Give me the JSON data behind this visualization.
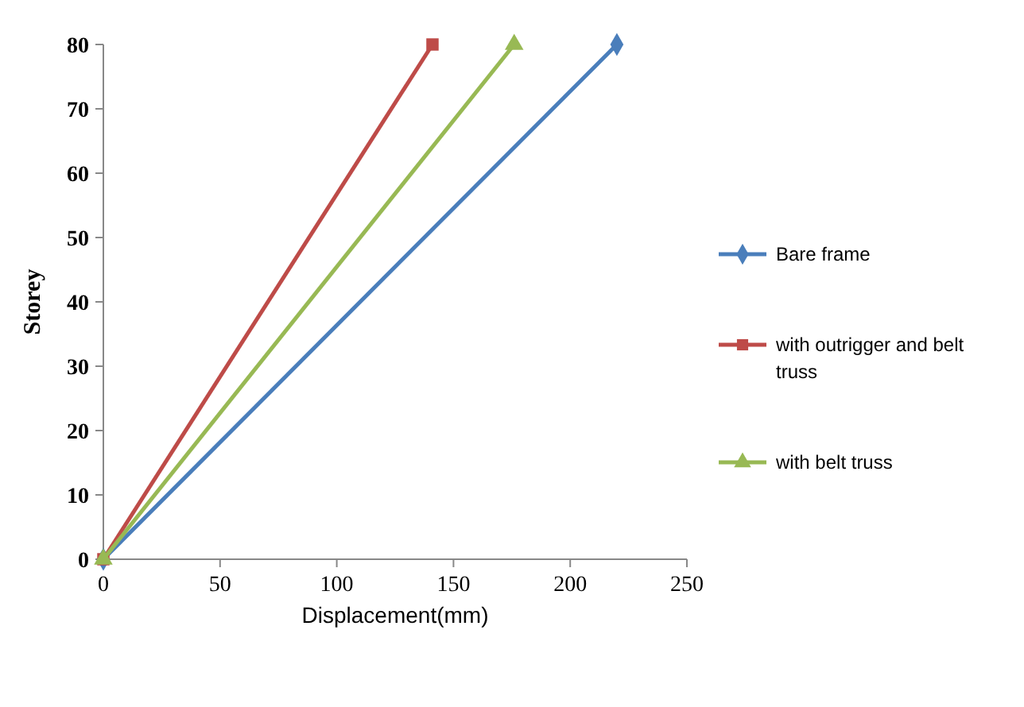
{
  "chart_data": {
    "type": "line",
    "xlabel": "Displacement(mm)",
    "ylabel": "Storey",
    "xlim": [
      0,
      250
    ],
    "xticks": [
      0,
      50,
      100,
      150,
      200,
      250
    ],
    "ylim": [
      0,
      80
    ],
    "yticks": [
      0,
      10,
      20,
      30,
      40,
      50,
      60,
      70,
      80
    ],
    "legend": "right",
    "grid": false,
    "series": [
      {
        "name": "Bare frame",
        "color": "#4a7ebb",
        "marker": "diamond",
        "x": [
          0,
          220
        ],
        "values": [
          0,
          80
        ]
      },
      {
        "name": "with outrigger and belt truss",
        "color": "#be4b48",
        "marker": "square",
        "x": [
          0,
          141
        ],
        "values": [
          0,
          80
        ]
      },
      {
        "name": "with belt truss",
        "color": "#98b954",
        "marker": "triangle",
        "x": [
          0,
          176
        ],
        "values": [
          0,
          80
        ]
      }
    ]
  }
}
